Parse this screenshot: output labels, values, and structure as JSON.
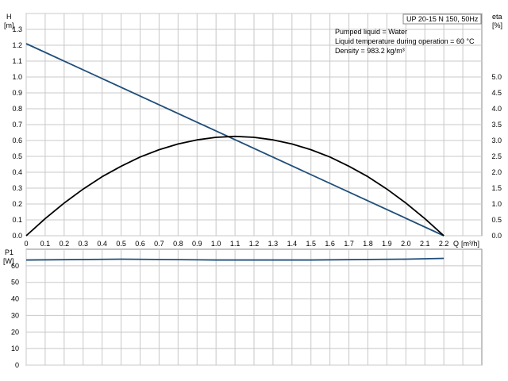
{
  "chart_data": [
    {
      "type": "line",
      "title": "UP 20-15 N 150, 50Hz",
      "notes": [
        "Pumped liquid = Water",
        "Liquid temperature during operation = 60 °C",
        "Density = 983.2 kg/m³"
      ],
      "x_label": "Q",
      "x_unit": "[m³/h]",
      "x_ticks": [
        "0",
        "0.1",
        "0.2",
        "0.3",
        "0.4",
        "0.5",
        "0.6",
        "0.7",
        "0.8",
        "0.9",
        "1.0",
        "1.1",
        "1.2",
        "1.3",
        "1.4",
        "1.5",
        "1.6",
        "1.7",
        "1.8",
        "1.9",
        "2.0",
        "2.1",
        "2.2"
      ],
      "xlim": [
        0,
        2.4
      ],
      "y_left_label": "H",
      "y_left_unit": "[m]",
      "y_left_ticks": [
        "0.0",
        "0.1",
        "0.2",
        "0.3",
        "0.4",
        "0.5",
        "0.6",
        "0.7",
        "0.8",
        "0.9",
        "1.0",
        "1.1",
        "1.2",
        "1.3"
      ],
      "ylim_left": [
        0,
        1.4
      ],
      "y_right_label": "eta",
      "y_right_unit": "[%]",
      "y_right_ticks": [
        "0.0",
        "0.5",
        "1.0",
        "1.5",
        "2.0",
        "2.5",
        "3.0",
        "3.5",
        "4.0",
        "4.5",
        "5.0"
      ],
      "ylim_right": [
        0,
        7.0
      ],
      "grid": true,
      "series": [
        {
          "axis": "left",
          "color": "#1f4e79",
          "x": [
            0,
            2.2
          ],
          "y": [
            1.21,
            0.0
          ]
        },
        {
          "axis": "right",
          "color": "#000000",
          "x": [
            0,
            0.1,
            0.2,
            0.3,
            0.4,
            0.5,
            0.6,
            0.7,
            0.8,
            0.9,
            1.0,
            1.1,
            1.2,
            1.3,
            1.4,
            1.5,
            1.6,
            1.7,
            1.8,
            1.9,
            2.0,
            2.1,
            2.2
          ],
          "y": [
            0.0,
            0.54,
            1.03,
            1.47,
            1.86,
            2.19,
            2.48,
            2.71,
            2.89,
            3.02,
            3.1,
            3.13,
            3.1,
            3.02,
            2.89,
            2.71,
            2.48,
            2.19,
            1.86,
            1.47,
            1.03,
            0.54,
            0.0
          ]
        }
      ]
    },
    {
      "type": "line",
      "y_label": "P1",
      "y_unit": "[W]",
      "y_ticks": [
        "0",
        "10",
        "20",
        "30",
        "40",
        "50",
        "60"
      ],
      "ylim": [
        0,
        70
      ],
      "xlim": [
        0,
        2.4
      ],
      "grid": true,
      "series": [
        {
          "color": "#1f4e79",
          "x": [
            0,
            0.5,
            1.0,
            1.5,
            2.0,
            2.2
          ],
          "y": [
            63.5,
            64.0,
            63.5,
            63.5,
            64.0,
            64.5
          ]
        }
      ]
    }
  ]
}
